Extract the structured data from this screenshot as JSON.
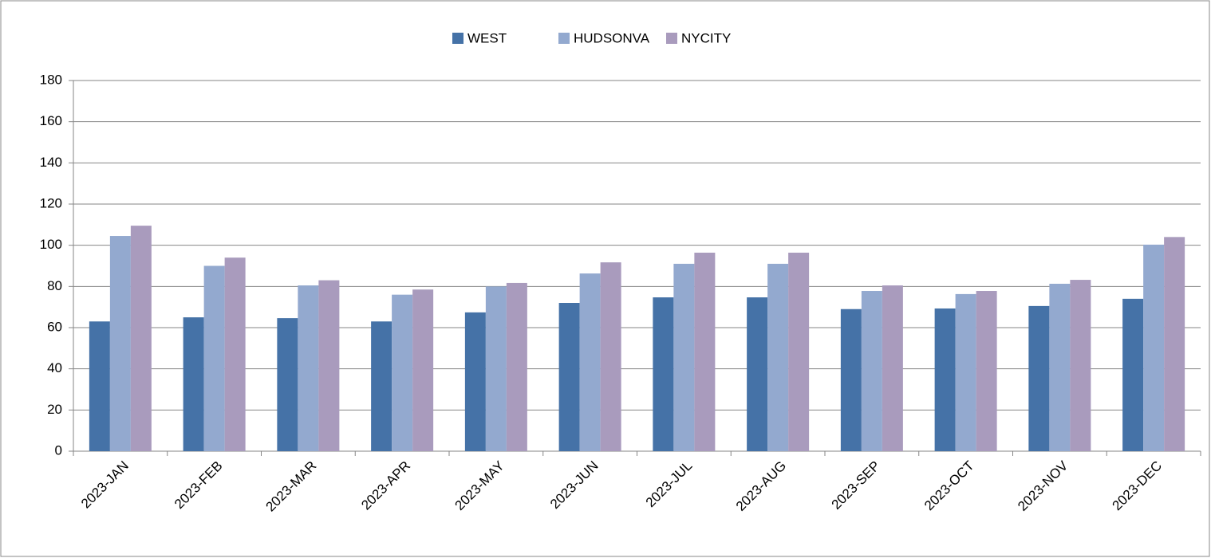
{
  "chart_data": {
    "type": "bar",
    "categories": [
      "2023-JAN",
      "2023-FEB",
      "2023-MAR",
      "2023-APR",
      "2023-MAY",
      "2023-JUN",
      "2023-JUL",
      "2023-AUG",
      "2023-SEP",
      "2023-OCT",
      "2023-NOV",
      "2023-DEC"
    ],
    "series": [
      {
        "name": "WEST",
        "color": "#4572a7",
        "values": [
          63,
          65,
          64.6,
          63,
          67.4,
          72,
          74.7,
          74.7,
          69,
          69.3,
          70.5,
          74
        ]
      },
      {
        "name": "HUDSONVA",
        "color": "#93a9cf",
        "values": [
          104.5,
          90,
          80.5,
          76,
          80,
          86.3,
          91,
          91,
          77.8,
          76.3,
          81.3,
          100.3
        ]
      },
      {
        "name": "NYCITY",
        "color": "#a99bbd",
        "values": [
          109.5,
          94,
          83,
          78.5,
          81.7,
          91.7,
          96.4,
          96.4,
          80.5,
          77.8,
          83.2,
          104
        ]
      }
    ],
    "ylim": [
      0,
      180
    ],
    "yticks": [
      0,
      20,
      40,
      60,
      80,
      100,
      120,
      140,
      160,
      180
    ],
    "grid": true,
    "legend": "top"
  }
}
